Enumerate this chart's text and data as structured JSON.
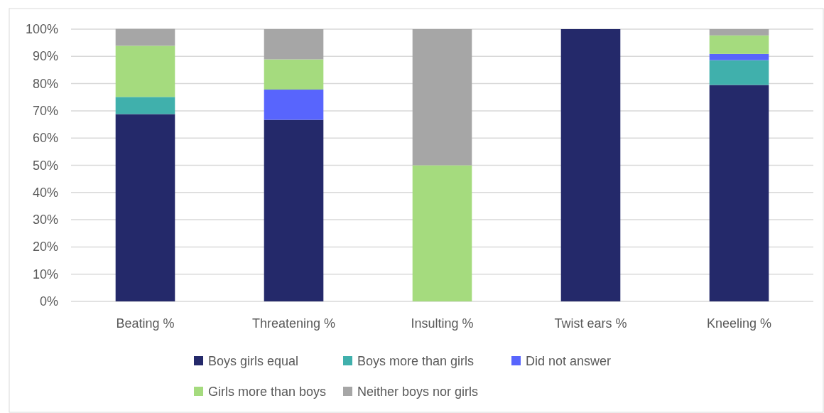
{
  "chart_data": {
    "type": "bar",
    "stacked": true,
    "categories": [
      "Beating %",
      "Threatening %",
      "Insulting %",
      "Twist ears %",
      "Kneeling %"
    ],
    "series": [
      {
        "name": "Boys girls equal",
        "color": "#24296a",
        "values": [
          68.8,
          66.7,
          0,
          100,
          79.5
        ]
      },
      {
        "name": "Boys more than girls",
        "color": "#40b0ac",
        "values": [
          6.3,
          0,
          0,
          0,
          9.1
        ]
      },
      {
        "name": "Did not answer",
        "color": "#5865fd",
        "values": [
          0,
          11.1,
          0,
          0,
          2.3
        ]
      },
      {
        "name": "Girls more than boys",
        "color": "#a5db7e",
        "values": [
          18.8,
          11.1,
          50,
          0,
          6.8
        ]
      },
      {
        "name": "Neither boys nor girls",
        "color": "#a6a6a6",
        "values": [
          6.2,
          11.1,
          50,
          0,
          2.3
        ]
      }
    ],
    "ylim": [
      0,
      100
    ],
    "yticks": [
      {
        "value": 0,
        "label": "0%"
      },
      {
        "value": 10,
        "label": "10%"
      },
      {
        "value": 20,
        "label": "20%"
      },
      {
        "value": 30,
        "label": "30%"
      },
      {
        "value": 40,
        "label": "40%"
      },
      {
        "value": 50,
        "label": "50%"
      },
      {
        "value": 60,
        "label": "60%"
      },
      {
        "value": 70,
        "label": "70%"
      },
      {
        "value": 80,
        "label": "80%"
      },
      {
        "value": 90,
        "label": "90%"
      },
      {
        "value": 100,
        "label": "100%"
      }
    ],
    "grid": "y",
    "legend": "bottom"
  }
}
